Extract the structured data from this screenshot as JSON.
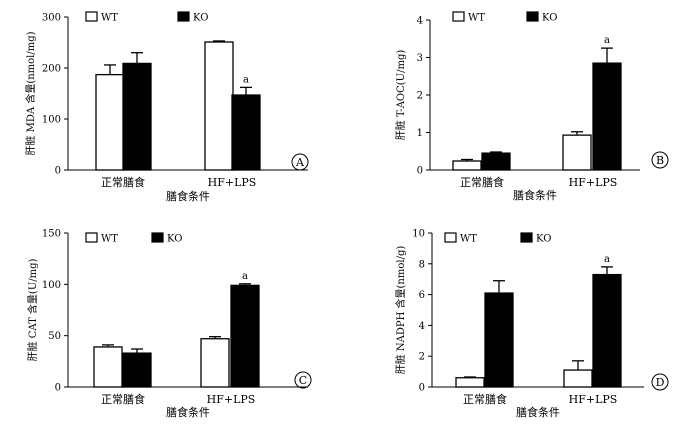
{
  "chart_data": [
    {
      "type": "bar",
      "panel_label": "A",
      "ylabel": "肝脏 MDA 含量(nmol/mg)",
      "xlabel": "膳食条件",
      "categories": [
        "正常膳食",
        "HF+LPS"
      ],
      "ylim": [
        0,
        300
      ],
      "yticks": [
        "0",
        "100",
        "200",
        "300"
      ],
      "legend": "top-left",
      "grid": false,
      "series": [
        {
          "name": "WT",
          "color": "#ffffff",
          "values": [
            187,
            251
          ],
          "errors": [
            19,
            2
          ]
        },
        {
          "name": "KO",
          "color": "#000000",
          "values": [
            209,
            147
          ],
          "errors": [
            21,
            15
          ]
        }
      ],
      "annotations": [
        "",
        "a"
      ]
    },
    {
      "type": "bar",
      "panel_label": "B",
      "ylabel": "肝脏 T-AOC(U/mg)",
      "xlabel": "膳食条件",
      "categories": [
        "正常膳食",
        "HF+LPS"
      ],
      "ylim": [
        0,
        4
      ],
      "yticks": [
        "0",
        "1",
        "2",
        "3",
        "4"
      ],
      "legend": "top-left",
      "grid": false,
      "series": [
        {
          "name": "WT",
          "color": "#ffffff",
          "values": [
            0.24,
            0.93
          ],
          "errors": [
            0.04,
            0.09
          ]
        },
        {
          "name": "KO",
          "color": "#000000",
          "values": [
            0.45,
            2.85
          ],
          "errors": [
            0.03,
            0.4
          ]
        }
      ],
      "annotations": [
        "",
        "a"
      ]
    },
    {
      "type": "bar",
      "panel_label": "C",
      "ylabel": "肝脏 CAT 含量(U/mg)",
      "xlabel": "膳食条件",
      "categories": [
        "正常膳食",
        "HF+LPS"
      ],
      "ylim": [
        0,
        150
      ],
      "yticks": [
        "0",
        "50",
        "100",
        "150"
      ],
      "legend": "top-left",
      "grid": false,
      "series": [
        {
          "name": "WT",
          "color": "#ffffff",
          "values": [
            39,
            47
          ],
          "errors": [
            2,
            2
          ]
        },
        {
          "name": "KO",
          "color": "#000000",
          "values": [
            33,
            99
          ],
          "errors": [
            4,
            1.5
          ]
        }
      ],
      "annotations": [
        "",
        "a"
      ]
    },
    {
      "type": "bar",
      "panel_label": "D",
      "ylabel": "肝脏 NADPH 含量(nmol/g)",
      "xlabel": "膳食条件",
      "categories": [
        "正常膳食",
        "HF+LPS"
      ],
      "ylim": [
        0,
        10
      ],
      "yticks": [
        "0",
        "2",
        "4",
        "6",
        "8",
        "10"
      ],
      "legend": "top-left",
      "grid": false,
      "series": [
        {
          "name": "WT",
          "color": "#ffffff",
          "values": [
            0.6,
            1.1
          ],
          "errors": [
            0.05,
            0.6
          ]
        },
        {
          "name": "KO",
          "color": "#000000",
          "values": [
            6.1,
            7.3
          ],
          "errors": [
            0.8,
            0.5
          ]
        }
      ],
      "annotations": [
        "",
        "a"
      ]
    }
  ]
}
